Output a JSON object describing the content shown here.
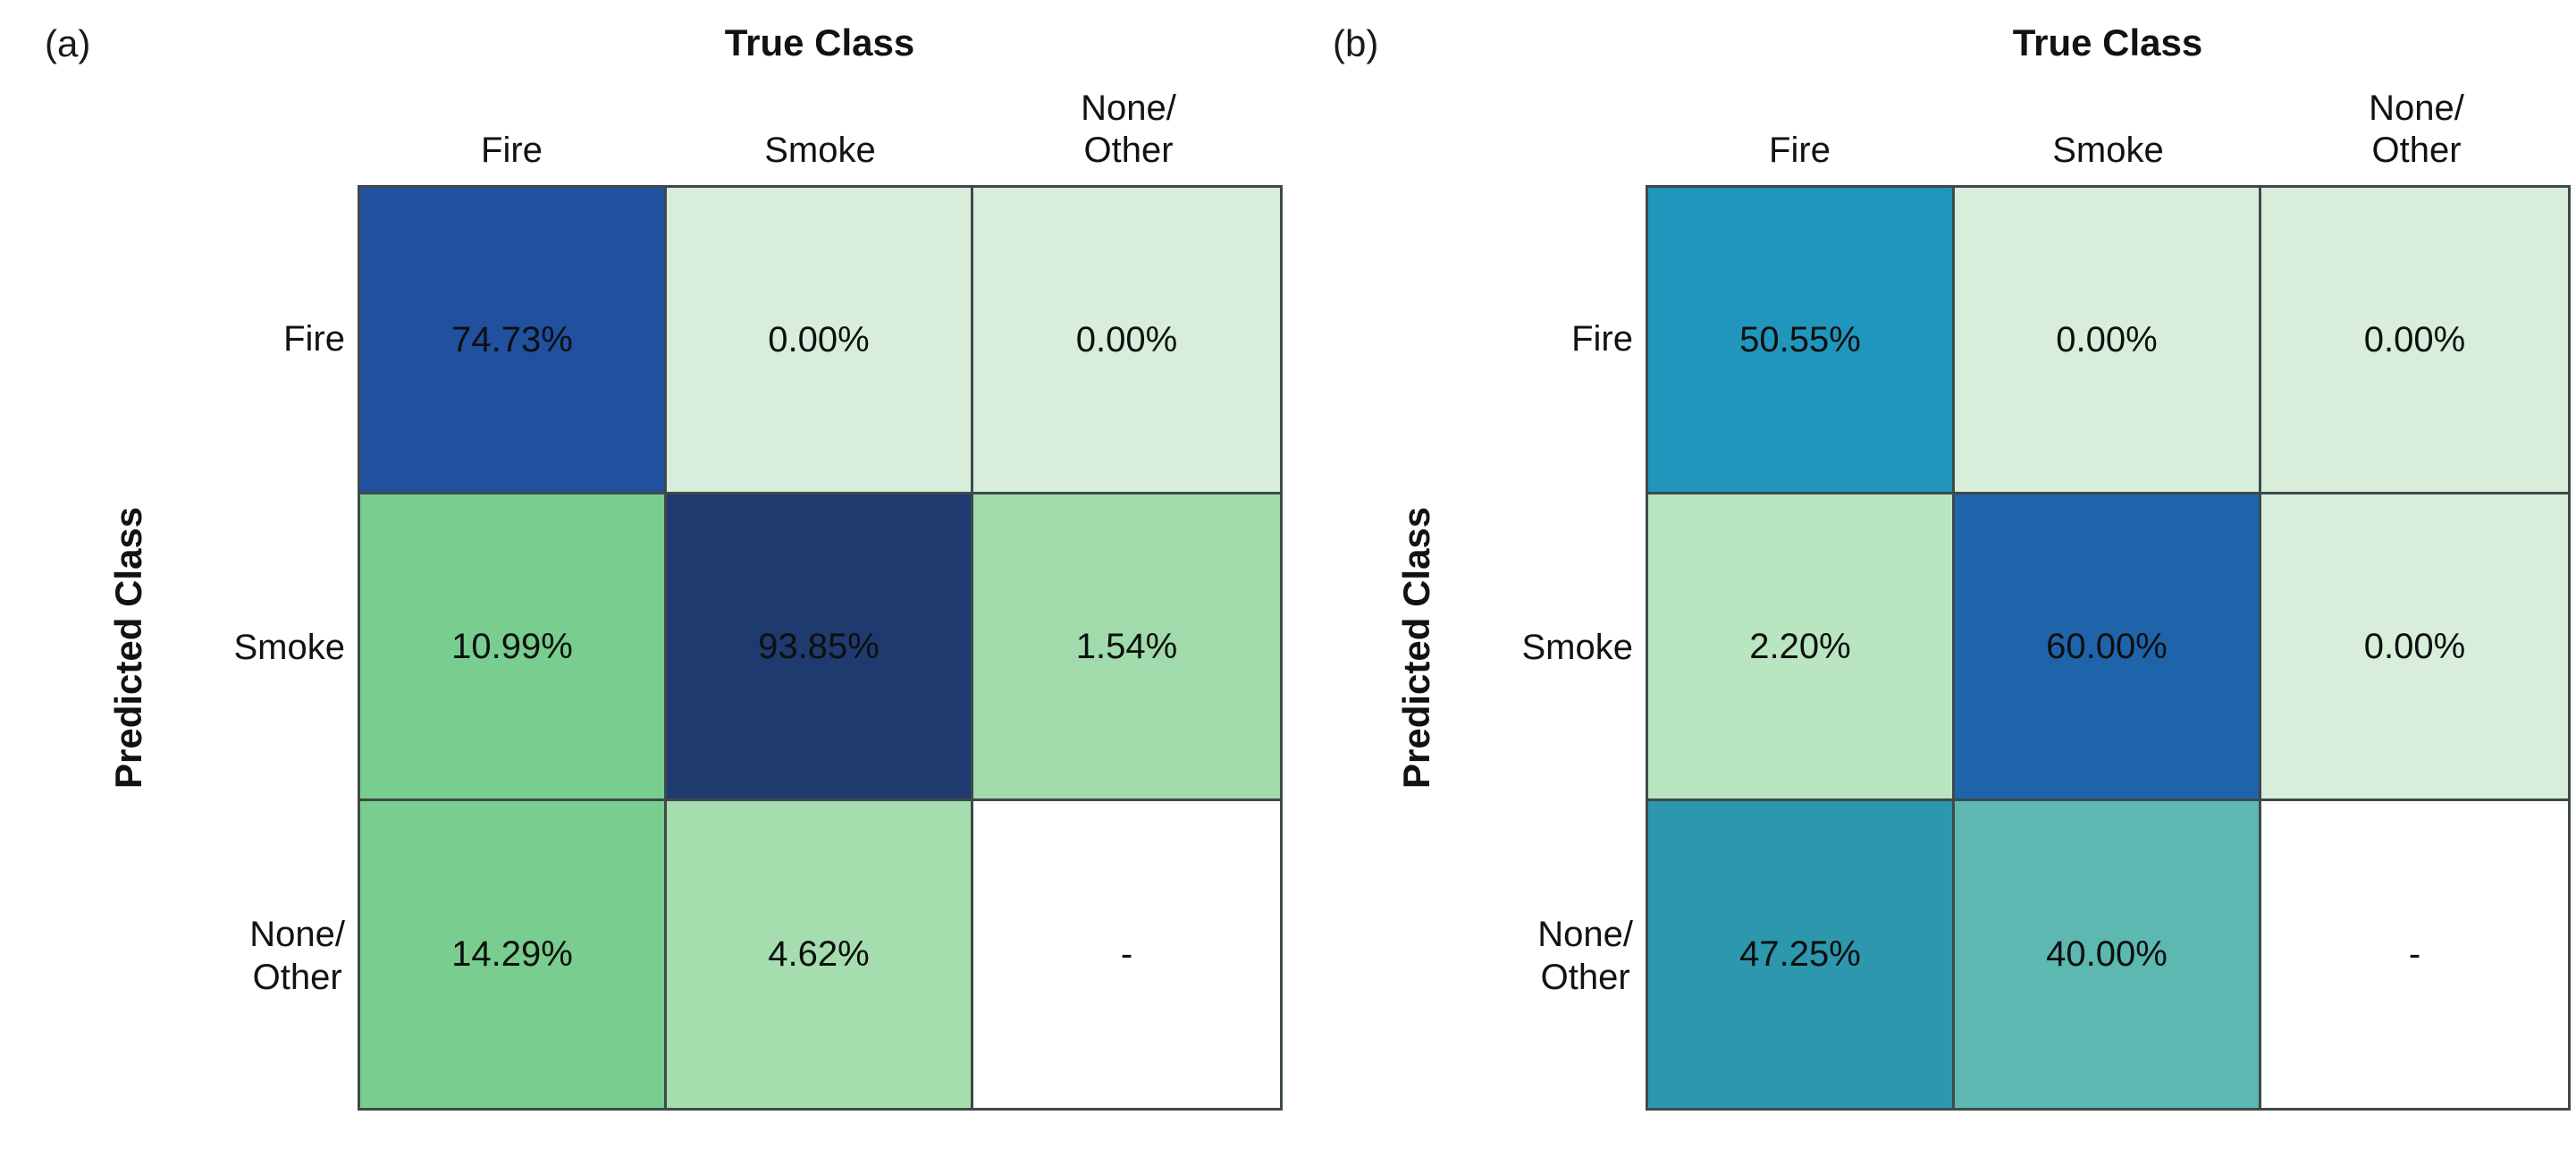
{
  "figure": {
    "background": "#ffffff",
    "grid_line_color": "#3d4a4a",
    "text_color": "#101314",
    "panels": [
      {
        "panel_label": "(a)",
        "x_axis_title": "True Class",
        "y_axis_title": "Predicted Class",
        "col_headers": [
          "Fire",
          "Smoke",
          "None/\nOther"
        ],
        "row_headers": [
          "Fire",
          "Smoke",
          "None/\nOther"
        ],
        "cells": [
          [
            {
              "label": "74.73%",
              "bg": "#20509e"
            },
            {
              "label": "0.00%",
              "bg": "#d8eedb"
            },
            {
              "label": "0.00%",
              "bg": "#d8eedb"
            }
          ],
          [
            {
              "label": "10.99%",
              "bg": "#79cd8e"
            },
            {
              "label": "93.85%",
              "bg": "#1f3a6e"
            },
            {
              "label": "1.54%",
              "bg": "#a2dbab"
            }
          ],
          [
            {
              "label": "14.29%",
              "bg": "#79cd8e"
            },
            {
              "label": "4.62%",
              "bg": "#a6ddaf"
            },
            {
              "label": "-",
              "bg": "#ffffff"
            }
          ]
        ]
      },
      {
        "panel_label": "(b)",
        "x_axis_title": "True Class",
        "y_axis_title": "Predicted Class",
        "col_headers": [
          "Fire",
          "Smoke",
          "None/\nOther"
        ],
        "row_headers": [
          "Fire",
          "Smoke",
          "None/\nOther"
        ],
        "cells": [
          [
            {
              "label": "50.55%",
              "bg": "#2196bc"
            },
            {
              "label": "0.00%",
              "bg": "#d8eedb"
            },
            {
              "label": "0.00%",
              "bg": "#d8eedb"
            }
          ],
          [
            {
              "label": "2.20%",
              "bg": "#b9e5c0"
            },
            {
              "label": "60.00%",
              "bg": "#1f64ab"
            },
            {
              "label": "0.00%",
              "bg": "#d8eedb"
            }
          ],
          [
            {
              "label": "47.25%",
              "bg": "#2d97ad"
            },
            {
              "label": "40.00%",
              "bg": "#5cb8b0"
            },
            {
              "label": "-",
              "bg": "#ffffff"
            }
          ]
        ]
      }
    ]
  },
  "chart_data": [
    {
      "type": "heatmap",
      "title": "(a)",
      "xlabel": "True Class",
      "ylabel": "Predicted Class",
      "x_categories": [
        "Fire",
        "Smoke",
        "None/Other"
      ],
      "y_categories": [
        "Fire",
        "Smoke",
        "None/Other"
      ],
      "values_percent": [
        [
          74.73,
          0.0,
          0.0
        ],
        [
          10.99,
          93.85,
          1.54
        ],
        [
          14.29,
          4.62,
          null
        ]
      ],
      "cell_labels": [
        [
          "74.73%",
          "0.00%",
          "0.00%"
        ],
        [
          "10.99%",
          "93.85%",
          "1.54%"
        ],
        [
          "14.29%",
          "4.62%",
          "-"
        ]
      ],
      "cell_colors": [
        [
          "#20509e",
          "#d8eedb",
          "#d8eedb"
        ],
        [
          "#79cd8e",
          "#1f3a6e",
          "#a2dbab"
        ],
        [
          "#79cd8e",
          "#a6ddaf",
          "#ffffff"
        ]
      ],
      "legend": "none",
      "grid": "on"
    },
    {
      "type": "heatmap",
      "title": "(b)",
      "xlabel": "True Class",
      "ylabel": "Predicted Class",
      "x_categories": [
        "Fire",
        "Smoke",
        "None/Other"
      ],
      "y_categories": [
        "Fire",
        "Smoke",
        "None/Other"
      ],
      "values_percent": [
        [
          50.55,
          0.0,
          0.0
        ],
        [
          2.2,
          60.0,
          0.0
        ],
        [
          47.25,
          40.0,
          null
        ]
      ],
      "cell_labels": [
        [
          "50.55%",
          "0.00%",
          "0.00%"
        ],
        [
          "2.20%",
          "60.00%",
          "0.00%"
        ],
        [
          "47.25%",
          "40.00%",
          "-"
        ]
      ],
      "cell_colors": [
        [
          "#2196bc",
          "#d8eedb",
          "#d8eedb"
        ],
        [
          "#b9e5c0",
          "#1f64ab",
          "#d8eedb"
        ],
        [
          "#2d97ad",
          "#5cb8b0",
          "#ffffff"
        ]
      ],
      "legend": "none",
      "grid": "on"
    }
  ]
}
